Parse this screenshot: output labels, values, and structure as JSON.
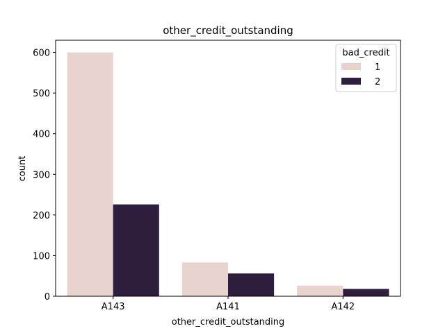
{
  "chart_data": {
    "type": "bar",
    "title": "other_credit_outstanding",
    "xlabel": "other_credit_outstanding",
    "ylabel": "count",
    "categories": [
      "A143",
      "A141",
      "A142"
    ],
    "series": [
      {
        "name": "1",
        "values": [
          600,
          83,
          26
        ],
        "color": "#e8d3ce"
      },
      {
        "name": "2",
        "values": [
          226,
          56,
          18
        ],
        "color": "#2d1e3d"
      }
    ],
    "ylim": [
      0,
      630
    ],
    "yticks": [
      0,
      100,
      200,
      300,
      400,
      500,
      600
    ],
    "legend": {
      "title": "bad_credit",
      "position": "top-right"
    },
    "grid": false
  }
}
